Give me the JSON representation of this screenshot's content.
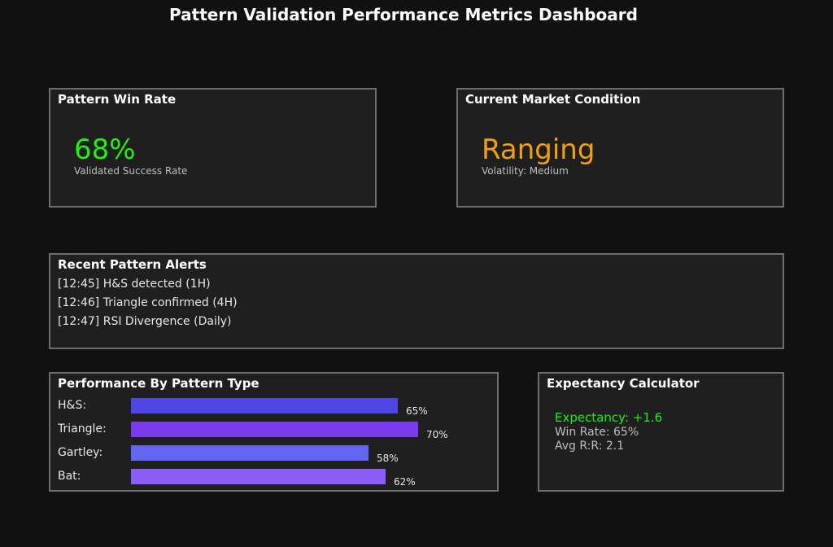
{
  "title": "Pattern Validation Performance Metrics Dashboard",
  "colors": {
    "positive": "#22ee11",
    "warning": "#f0a010",
    "bar_hs": "#4f46e5",
    "bar_triangle": "#7c3aed",
    "bar_gartley": "#6366f1",
    "bar_bat": "#8b5cf6"
  },
  "win_rate": {
    "title": "Pattern Win Rate",
    "value": "68%",
    "label": "Validated Success Rate"
  },
  "market": {
    "title": "Current Market Condition",
    "value": "Ranging",
    "label": "Volatility: Medium"
  },
  "alerts": {
    "title": "Recent Pattern Alerts",
    "items": [
      "[12:45] H&S detected (1H)",
      "[12:46] Triangle confirmed (4H)",
      "[12:47] RSI Divergence (Daily)"
    ]
  },
  "performance": {
    "title": "Performance By Pattern Type",
    "scale_max_percent": 70,
    "rows": [
      {
        "label": "H&S:",
        "value": 65,
        "pct_label": "65%"
      },
      {
        "label": "Triangle:",
        "value": 70,
        "pct_label": "70%"
      },
      {
        "label": "Gartley:",
        "value": 58,
        "pct_label": "58%"
      },
      {
        "label": "Bat:",
        "value": 62,
        "pct_label": "62%"
      }
    ]
  },
  "expectancy": {
    "title": "Expectancy Calculator",
    "expectancy": "Expectancy: +1.6",
    "win_rate": "Win Rate: 65%",
    "avg_rr": "Avg R:R: 2.1"
  }
}
